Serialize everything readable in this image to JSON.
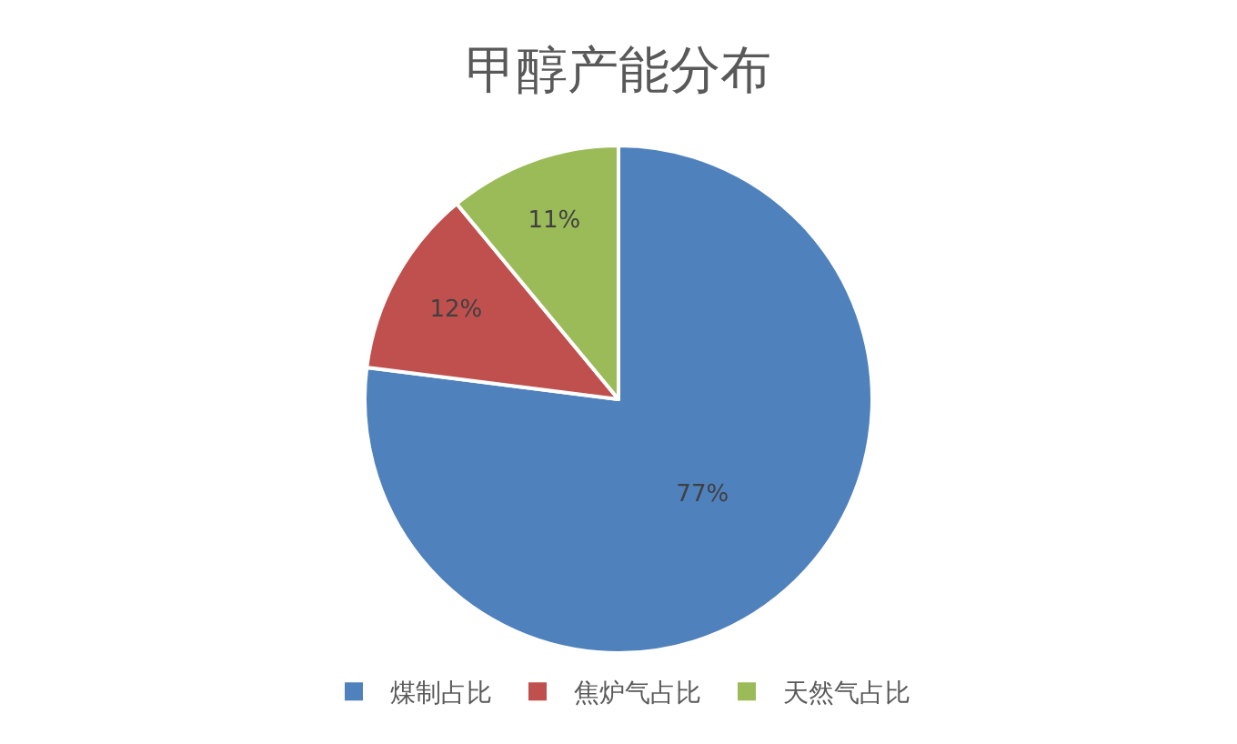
{
  "chart_data": {
    "type": "pie",
    "title": "甲醇产能分布",
    "categories": [
      "煤制占比",
      "焦炉气占比",
      "天然气占比"
    ],
    "values": [
      77,
      12,
      11
    ],
    "value_labels": [
      "77%",
      "12%",
      "11%"
    ],
    "colors": [
      "#4f81bd",
      "#c0504d",
      "#9bbb59"
    ],
    "legend": "bottom"
  }
}
